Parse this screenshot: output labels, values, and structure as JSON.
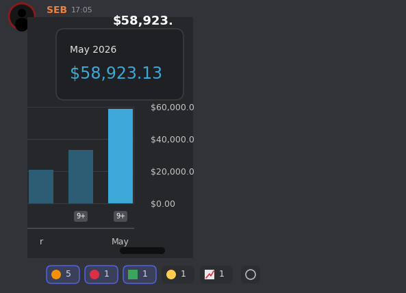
{
  "message": {
    "author": "SEB",
    "time": "17:05",
    "header_value": "$58,923."
  },
  "tooltip": {
    "title": "May 2026",
    "value": "$58,923.13"
  },
  "chart_data": {
    "type": "bar",
    "categories": [
      "r",
      null,
      "May"
    ],
    "values": [
      21000,
      33000,
      58923.13
    ],
    "colors": [
      "#2d5d75",
      "#2d5d75",
      "#3ca9d8"
    ],
    "ylim": [
      0,
      60000
    ],
    "yticks": [
      {
        "value": 0,
        "label": "$0.00"
      },
      {
        "value": 20000,
        "label": "$20,000.0"
      },
      {
        "value": 40000,
        "label": "$40,000.0"
      },
      {
        "value": 60000,
        "label": "$60,000.0"
      }
    ],
    "grid": true
  },
  "bar_badges": [
    null,
    "9+",
    "9+"
  ],
  "reactions": [
    5,
    1,
    1,
    1,
    1
  ]
}
